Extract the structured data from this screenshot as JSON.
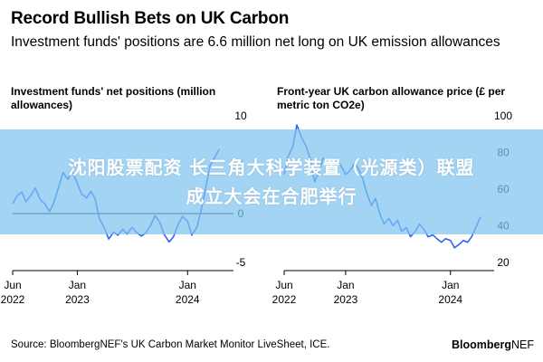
{
  "header": {
    "title": "Record Bullish Bets on UK Carbon",
    "subtitle": "Investment funds' positions are 6.6 million net long on UK emission allowances"
  },
  "banner": {
    "line1": "沈阳股票配资 长三角大科学装置（光源类）联盟",
    "line2": "成立大会在合肥举行"
  },
  "footer": {
    "source": "Source: BloombergNEF's UK Carbon Market Monitor LiveSheet, ICE.",
    "brand_bold": "Bloomberg",
    "brand_light": "NEF"
  },
  "colors": {
    "series": "#2e64f4",
    "axis": "#000000",
    "banner": "#80c4f0"
  },
  "chart_data": [
    {
      "type": "line",
      "title": "Investment funds' net positions (million allowances)",
      "ylim": [
        -5,
        10
      ],
      "yticks": [
        -5,
        0,
        5,
        10
      ],
      "xlim": [
        "2022-06-01",
        "2024-06-01"
      ],
      "xticks": [
        {
          "date": "2022-06-01",
          "label1": "Jun",
          "label2": "2022"
        },
        {
          "date": "2023-01-01",
          "label1": "Jan",
          "label2": "2023"
        },
        {
          "date": "2024-01-01",
          "label1": "Jan",
          "label2": "2024"
        }
      ],
      "axis_side": "right",
      "grid": false,
      "zero_line": true,
      "series": [
        {
          "values": [
            [
              "2022-06-01",
              1.0
            ],
            [
              "2022-06-15",
              1.8
            ],
            [
              "2022-07-01",
              2.2
            ],
            [
              "2022-07-15",
              1.2
            ],
            [
              "2022-08-01",
              1.9
            ],
            [
              "2022-08-15",
              2.6
            ],
            [
              "2022-09-01",
              1.4
            ],
            [
              "2022-09-15",
              1.0
            ],
            [
              "2022-10-01",
              0.2
            ],
            [
              "2022-10-15",
              1.1
            ],
            [
              "2022-11-01",
              2.8
            ],
            [
              "2022-11-15",
              4.2
            ],
            [
              "2022-12-01",
              3.5
            ],
            [
              "2022-12-15",
              4.3
            ],
            [
              "2023-01-01",
              3.1
            ],
            [
              "2023-01-15",
              2.0
            ],
            [
              "2023-02-01",
              1.6
            ],
            [
              "2023-02-15",
              2.3
            ],
            [
              "2023-03-01",
              1.5
            ],
            [
              "2023-03-15",
              -0.5
            ],
            [
              "2023-04-01",
              -1.5
            ],
            [
              "2023-04-15",
              -2.6
            ],
            [
              "2023-05-01",
              -1.9
            ],
            [
              "2023-05-15",
              -2.2
            ],
            [
              "2023-06-01",
              -1.6
            ],
            [
              "2023-06-15",
              -2.1
            ],
            [
              "2023-07-01",
              -1.4
            ],
            [
              "2023-07-15",
              -1.9
            ],
            [
              "2023-08-01",
              -2.3
            ],
            [
              "2023-08-15",
              -2.0
            ],
            [
              "2023-09-01",
              -1.2
            ],
            [
              "2023-09-15",
              -0.2
            ],
            [
              "2023-10-01",
              -0.9
            ],
            [
              "2023-10-15",
              -2.1
            ],
            [
              "2023-11-01",
              -2.9
            ],
            [
              "2023-11-15",
              -2.4
            ],
            [
              "2023-12-01",
              -1.1
            ],
            [
              "2023-12-15",
              -0.3
            ],
            [
              "2024-01-01",
              -0.8
            ],
            [
              "2024-01-15",
              -2.2
            ],
            [
              "2024-02-01",
              -1.4
            ],
            [
              "2024-02-15",
              0.4
            ],
            [
              "2024-03-01",
              2.6
            ],
            [
              "2024-03-15",
              4.9
            ],
            [
              "2024-04-01",
              5.8
            ],
            [
              "2024-04-15",
              6.6
            ]
          ]
        }
      ]
    },
    {
      "type": "line",
      "title": "Front-year UK carbon allowance price (£ per metric ton CO2e)",
      "ylim": [
        20,
        100
      ],
      "yticks": [
        20,
        40,
        60,
        80,
        100
      ],
      "xlim": [
        "2022-06-01",
        "2024-06-01"
      ],
      "xticks": [
        {
          "date": "2022-06-01",
          "label1": "Jun",
          "label2": "2022"
        },
        {
          "date": "2023-01-01",
          "label1": "Jan",
          "label2": "2023"
        },
        {
          "date": "2024-01-01",
          "label1": "Jan",
          "label2": "2024"
        }
      ],
      "axis_side": "right",
      "grid": false,
      "zero_line": false,
      "series": [
        {
          "values": [
            [
              "2022-06-01",
              68
            ],
            [
              "2022-06-15",
              78
            ],
            [
              "2022-07-01",
              83
            ],
            [
              "2022-07-15",
              95
            ],
            [
              "2022-08-01",
              88
            ],
            [
              "2022-08-15",
              84
            ],
            [
              "2022-09-01",
              76
            ],
            [
              "2022-09-15",
              64
            ],
            [
              "2022-10-01",
              70
            ],
            [
              "2022-10-15",
              77
            ],
            [
              "2022-11-01",
              74
            ],
            [
              "2022-11-15",
              71
            ],
            [
              "2022-12-01",
              76
            ],
            [
              "2022-12-15",
              73
            ],
            [
              "2023-01-01",
              68
            ],
            [
              "2023-01-15",
              70
            ],
            [
              "2023-02-01",
              74
            ],
            [
              "2023-02-15",
              71
            ],
            [
              "2023-03-01",
              66
            ],
            [
              "2023-03-15",
              58
            ],
            [
              "2023-04-01",
              51
            ],
            [
              "2023-04-15",
              55
            ],
            [
              "2023-05-01",
              46
            ],
            [
              "2023-05-15",
              41
            ],
            [
              "2023-06-01",
              44
            ],
            [
              "2023-06-15",
              40
            ],
            [
              "2023-07-01",
              43
            ],
            [
              "2023-07-15",
              37
            ],
            [
              "2023-08-01",
              39
            ],
            [
              "2023-08-15",
              34
            ],
            [
              "2023-09-01",
              37
            ],
            [
              "2023-09-15",
              41
            ],
            [
              "2023-10-01",
              38
            ],
            [
              "2023-10-15",
              34
            ],
            [
              "2023-11-01",
              35
            ],
            [
              "2023-11-15",
              33
            ],
            [
              "2023-12-01",
              31
            ],
            [
              "2023-12-15",
              33
            ],
            [
              "2024-01-01",
              32
            ],
            [
              "2024-01-15",
              28
            ],
            [
              "2024-02-01",
              30
            ],
            [
              "2024-02-15",
              32
            ],
            [
              "2024-03-01",
              31
            ],
            [
              "2024-03-15",
              34
            ],
            [
              "2024-04-01",
              40
            ],
            [
              "2024-04-15",
              45
            ]
          ]
        }
      ]
    }
  ]
}
